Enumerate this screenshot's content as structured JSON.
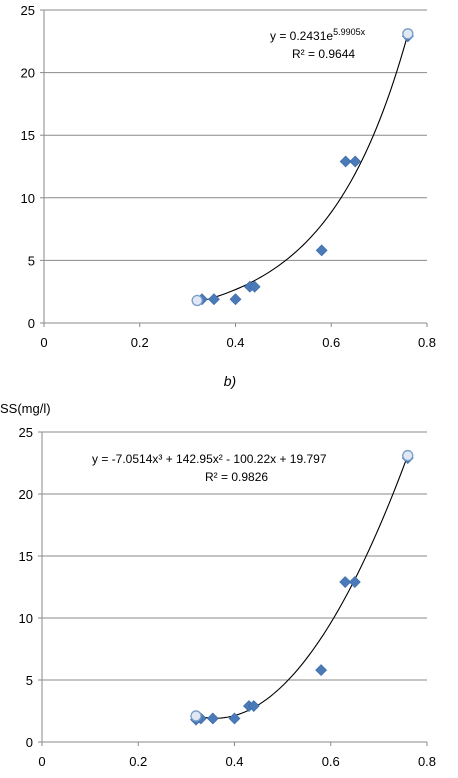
{
  "chart_data": [
    {
      "type": "scatter",
      "ylabel": "",
      "xlim": [
        0,
        0.8
      ],
      "ylim": [
        0,
        25
      ],
      "xticks": [
        "0",
        "0.2",
        "0.4",
        "0.6",
        "0.8"
      ],
      "yticks": [
        "0",
        "5",
        "10",
        "15",
        "20",
        "25"
      ],
      "grid": "horizontal",
      "series": [
        {
          "marker": "diamond",
          "color": "#4a7ab8",
          "points": [
            [
              0.32,
              1.8
            ],
            [
              0.33,
              1.9
            ],
            [
              0.355,
              1.9
            ],
            [
              0.4,
              1.9
            ],
            [
              0.43,
              2.9
            ],
            [
              0.44,
              2.9
            ],
            [
              0.58,
              5.8
            ],
            [
              0.63,
              12.9
            ],
            [
              0.65,
              12.9
            ],
            [
              0.76,
              22.9
            ]
          ]
        },
        {
          "marker": "open-circle",
          "color": "#7a9cc8",
          "points": [
            [
              0.32,
              1.8
            ],
            [
              0.76,
              23.1
            ]
          ]
        }
      ],
      "trendline": {
        "kind": "exponential",
        "a": 0.2431,
        "b": 5.9905,
        "x_range": [
          0.32,
          0.76
        ]
      },
      "equation": "y = 0.2431e",
      "equation_exp": "5.9905x",
      "r2_label": "R² = 0.9644",
      "caption": "b)"
    },
    {
      "type": "scatter",
      "ylabel": "SS(mg/l)",
      "xlim": [
        0,
        0.8
      ],
      "ylim": [
        0,
        25
      ],
      "xticks": [
        "0",
        "0.2",
        "0.4",
        "0.6",
        "0.8"
      ],
      "yticks": [
        "0",
        "5",
        "10",
        "15",
        "20",
        "25"
      ],
      "grid": "horizontal",
      "series": [
        {
          "marker": "diamond",
          "color": "#4a7ab8",
          "points": [
            [
              0.32,
              1.8
            ],
            [
              0.33,
              1.9
            ],
            [
              0.355,
              1.9
            ],
            [
              0.4,
              1.9
            ],
            [
              0.43,
              2.9
            ],
            [
              0.44,
              2.9
            ],
            [
              0.58,
              5.8
            ],
            [
              0.63,
              12.9
            ],
            [
              0.65,
              12.9
            ],
            [
              0.76,
              22.9
            ]
          ]
        },
        {
          "marker": "open-circle",
          "color": "#7a9cc8",
          "points": [
            [
              0.32,
              2.1
            ],
            [
              0.76,
              23.1
            ]
          ]
        }
      ],
      "trendline": {
        "kind": "polynomial",
        "coeffs": [
          -7.0514,
          142.95,
          -100.22,
          19.797
        ],
        "x_range": [
          0.32,
          0.76
        ]
      },
      "equation": "y = -7.0514x³ + 142.95x² - 100.22x + 19.797",
      "r2_label": "R² = 0.9826"
    }
  ]
}
